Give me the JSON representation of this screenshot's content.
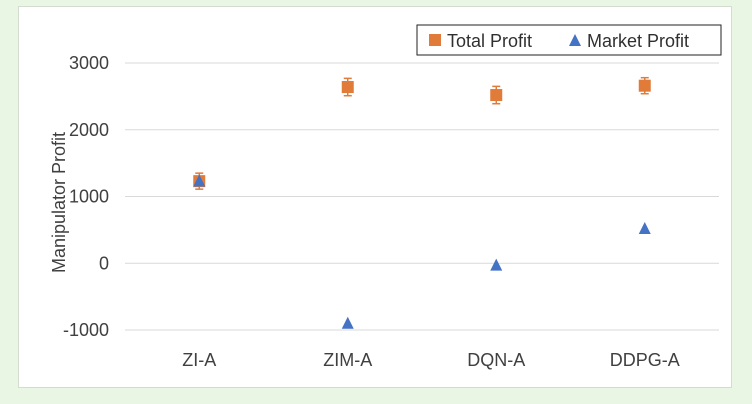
{
  "chart_data": {
    "type": "scatter",
    "title": "",
    "xlabel": "",
    "ylabel": "Manipulator Profit",
    "categories": [
      "ZI-A",
      "ZIM-A",
      "DQN-A",
      "DDPG-A"
    ],
    "ylim": [
      -1000,
      3000
    ],
    "yticks": [
      -1000,
      0,
      1000,
      2000,
      3000
    ],
    "ytick_labels": [
      "-1000",
      "0",
      "1000",
      "2000",
      "3000"
    ],
    "grid": true,
    "legend_position": "top-right",
    "series": [
      {
        "name": "Total Profit",
        "marker": "square",
        "color": "#e07b39",
        "values": [
          1230,
          2640,
          2520,
          2660
        ],
        "error": [
          120,
          130,
          130,
          120
        ]
      },
      {
        "name": "Market Profit",
        "marker": "triangle",
        "color": "#4472c4",
        "values": [
          1230,
          -900,
          -30,
          520
        ]
      }
    ]
  }
}
